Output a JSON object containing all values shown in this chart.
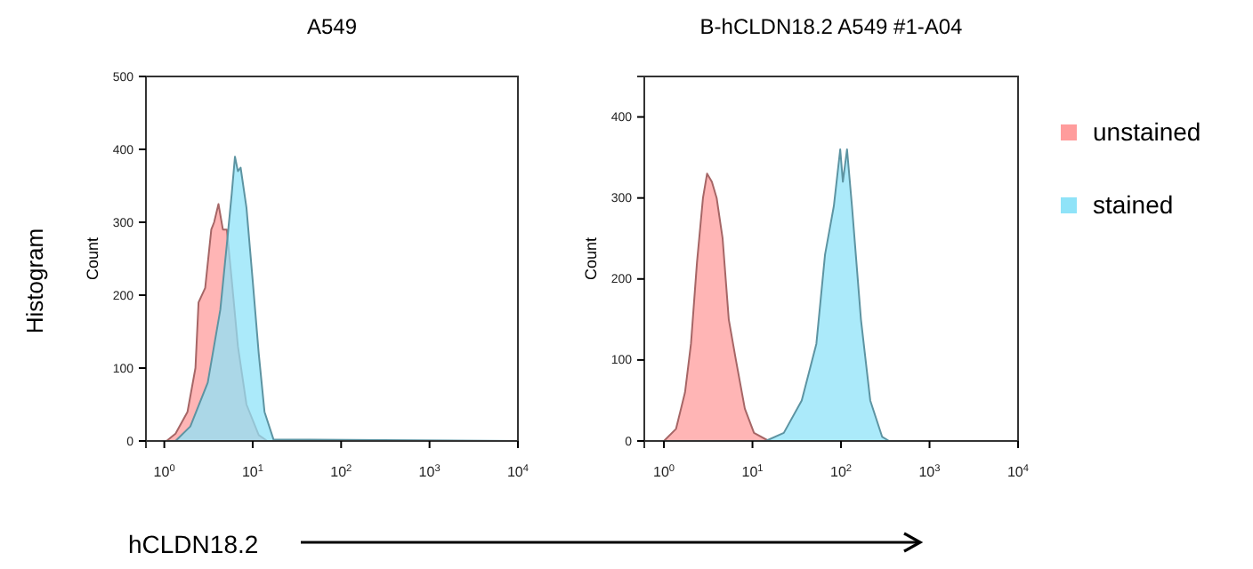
{
  "chart_data": [
    {
      "type": "area",
      "title": "A549",
      "ylabel": "Count",
      "log": "x",
      "xlim": [
        0.62,
        10000
      ],
      "ylim": [
        0,
        500
      ],
      "xticks": [
        {
          "value": 1,
          "label": "10$^{0}$"
        },
        {
          "value": 10,
          "label": "10$^{1}$"
        },
        {
          "value": 100,
          "label": "10$^{2}$"
        },
        {
          "value": 1000,
          "label": "10$^{3}$"
        },
        {
          "value": 10000,
          "label": "10$^{4}$"
        }
      ],
      "yticks": [
        0,
        100,
        200,
        300,
        400,
        500
      ],
      "annotations": [
        "Histogram",
        "hCLDN18.2"
      ],
      "series": [
        {
          "color": "#ff9c9c",
          "x": [
            0.62,
            1.06,
            1.34,
            1.83,
            2.25,
            2.44,
            2.9,
            3.4,
            3.66,
            4.1,
            4.6,
            5.1,
            5.8,
            6.8,
            8.5,
            11.7,
            14.6,
            10000
          ],
          "values": [
            0,
            0,
            10,
            40,
            100,
            190,
            210,
            290,
            300,
            325,
            290,
            290,
            220,
            130,
            50,
            8,
            0,
            0
          ]
        },
        {
          "color": "#8fe3f8",
          "x": [
            0.62,
            1.34,
            1.97,
            3.1,
            4.3,
            5.1,
            5.8,
            6.3,
            6.8,
            7.3,
            8.5,
            10,
            11.7,
            13.6,
            17.2,
            10000
          ],
          "values": [
            0,
            0,
            20,
            80,
            180,
            270,
            340,
            390,
            370,
            375,
            320,
            220,
            120,
            40,
            2,
            0
          ]
        }
      ]
    },
    {
      "type": "area",
      "title": "B-hCLDN18.2 A549 #1-A04",
      "ylabel": "Count",
      "log": "x",
      "xlim": [
        0.6,
        10000
      ],
      "ylim": [
        0,
        450
      ],
      "xticks": [
        {
          "value": 1,
          "label": "10$^{0}$"
        },
        {
          "value": 10,
          "label": "10$^{1}$"
        },
        {
          "value": 100,
          "label": "10$^{2}$"
        },
        {
          "value": 1000,
          "label": "10$^{3}$"
        },
        {
          "value": 10000,
          "label": "10$^{4}$"
        }
      ],
      "yticks": [
        0,
        100,
        200,
        300,
        400
      ],
      "legend": "right",
      "series": [
        {
          "name": "unstained",
          "color": "#ff9c9c",
          "x": [
            0.6,
            1,
            1.37,
            1.73,
            2.02,
            2.36,
            2.76,
            3.07,
            3.48,
            3.94,
            4.6,
            5.4,
            6.5,
            8.2,
            10.4,
            15.3,
            10000
          ],
          "values": [
            0,
            0,
            15,
            60,
            120,
            220,
            300,
            330,
            320,
            300,
            250,
            150,
            100,
            40,
            10,
            0,
            0
          ]
        },
        {
          "name": "stained",
          "color": "#8fe3f8",
          "x": [
            0.6,
            14.1,
            22.6,
            36,
            52.7,
            66,
            83,
            98,
            105,
            117,
            133,
            168,
            214,
            292,
            350,
            10000
          ],
          "values": [
            0,
            0,
            10,
            50,
            120,
            230,
            290,
            360,
            320,
            360,
            290,
            150,
            50,
            5,
            0,
            0
          ]
        }
      ]
    }
  ]
}
